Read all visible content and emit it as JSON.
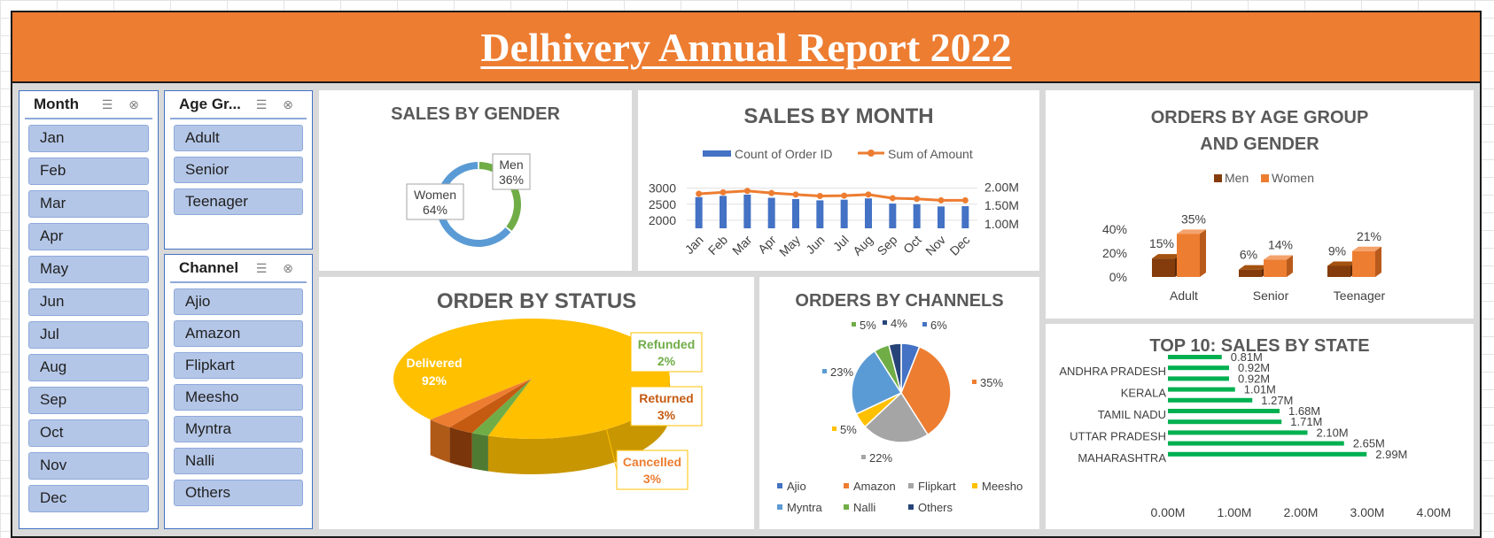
{
  "report_title": "Delhivery Annual Report 2022",
  "slicers": {
    "month": {
      "title": "Month",
      "items": [
        "Jan",
        "Feb",
        "Mar",
        "Apr",
        "May",
        "Jun",
        "Jul",
        "Aug",
        "Sep",
        "Oct",
        "Nov",
        "Dec"
      ]
    },
    "age_group": {
      "title": "Age Gr...",
      "items": [
        "Adult",
        "Senior",
        "Teenager"
      ]
    },
    "channel": {
      "title": "Channel",
      "items": [
        "Ajio",
        "Amazon",
        "Flipkart",
        "Meesho",
        "Myntra",
        "Nalli",
        "Others"
      ]
    }
  },
  "colors": {
    "orange": "#ed7d31",
    "blue": "#4472c4",
    "light_blue": "#5b9bd5",
    "green": "#70ad47",
    "gray": "#a5a5a5",
    "gold": "#ffc000",
    "navy": "#264478",
    "brown": "#843c0c",
    "bar_green": "#00b050",
    "slicer_btn": "#b4c6e7"
  },
  "chart_data": [
    {
      "id": "gender",
      "type": "pie",
      "title": "SALES BY GENDER",
      "variant": "donut",
      "categories": [
        "Men",
        "Women"
      ],
      "values": [
        36,
        64
      ],
      "labels": [
        "36%",
        "64%"
      ]
    },
    {
      "id": "month",
      "type": "bar",
      "title": "SALES BY MONTH",
      "categories": [
        "Jan",
        "Feb",
        "Mar",
        "Apr",
        "May",
        "Jun",
        "Jul",
        "Aug",
        "Sep",
        "Oct",
        "Nov",
        "Dec"
      ],
      "series": [
        {
          "name": "Count of Order ID",
          "type": "bar",
          "axis": "left",
          "values": [
            2720,
            2760,
            2800,
            2700,
            2660,
            2620,
            2640,
            2680,
            2520,
            2500,
            2430,
            2440
          ]
        },
        {
          "name": "Sum of Amount",
          "type": "line",
          "axis": "right",
          "values": [
            1.82,
            1.86,
            1.9,
            1.84,
            1.8,
            1.76,
            1.77,
            1.8,
            1.7,
            1.68,
            1.64,
            1.64
          ]
        }
      ],
      "left_axis": {
        "ticks": [
          "3000",
          "2500",
          "2000"
        ],
        "range": [
          1750,
          3100
        ]
      },
      "right_axis": {
        "ticks": [
          "2.00M",
          "1.50M",
          "1.00M"
        ],
        "range": [
          0.875,
          2.0625
        ]
      },
      "legend": "top"
    },
    {
      "id": "age_gender",
      "type": "bar",
      "title": "ORDERS BY AGE GROUP AND GENDER",
      "categories": [
        "Adult",
        "Senior",
        "Teenager"
      ],
      "series": [
        {
          "name": "Men",
          "values": [
            15,
            6,
            9
          ],
          "labels": [
            "15%",
            "6%",
            "9%"
          ]
        },
        {
          "name": "Women",
          "values": [
            35,
            14,
            21
          ],
          "labels": [
            "35%",
            "14%",
            "21%"
          ]
        }
      ],
      "y_ticks": [
        "40%",
        "20%",
        "0%"
      ],
      "ylim": [
        0,
        40
      ],
      "legend": "top"
    },
    {
      "id": "status",
      "type": "pie",
      "title": "ORDER BY STATUS",
      "categories": [
        "Delivered",
        "Refunded",
        "Returned",
        "Cancelled"
      ],
      "values": [
        92,
        2,
        3,
        3
      ],
      "labels": [
        "92%",
        "2%",
        "3%",
        "3%"
      ]
    },
    {
      "id": "channels",
      "type": "pie",
      "title": "ORDERS BY CHANNELS",
      "categories": [
        "Ajio",
        "Amazon",
        "Flipkart",
        "Meesho",
        "Myntra",
        "Nalli",
        "Others"
      ],
      "values": [
        6,
        35,
        22,
        5,
        23,
        5,
        4
      ],
      "labels": [
        "6%",
        "35%",
        "22%",
        "5%",
        "23%",
        "5%",
        "4%"
      ],
      "legend": "bottom"
    },
    {
      "id": "states",
      "type": "bar",
      "orientation": "horizontal",
      "title": "TOP 10: SALES BY STATE",
      "categories": [
        "",
        "ANDHRA PRADESH",
        "",
        "KERALA",
        "",
        "TAMIL NADU",
        "",
        "UTTAR PRADESH",
        "",
        "MAHARASHTRA"
      ],
      "values": [
        0.81,
        0.92,
        0.92,
        1.01,
        1.27,
        1.68,
        1.71,
        2.1,
        2.65,
        2.99
      ],
      "labels": [
        "0.81M",
        "0.92M",
        "0.92M",
        "1.01M",
        "1.27M",
        "1.68M",
        "1.71M",
        "2.10M",
        "2.65M",
        "2.99M"
      ],
      "x_ticks": [
        "0.00M",
        "1.00M",
        "2.00M",
        "3.00M",
        "4.00M"
      ],
      "xlim": [
        0,
        4
      ]
    }
  ]
}
